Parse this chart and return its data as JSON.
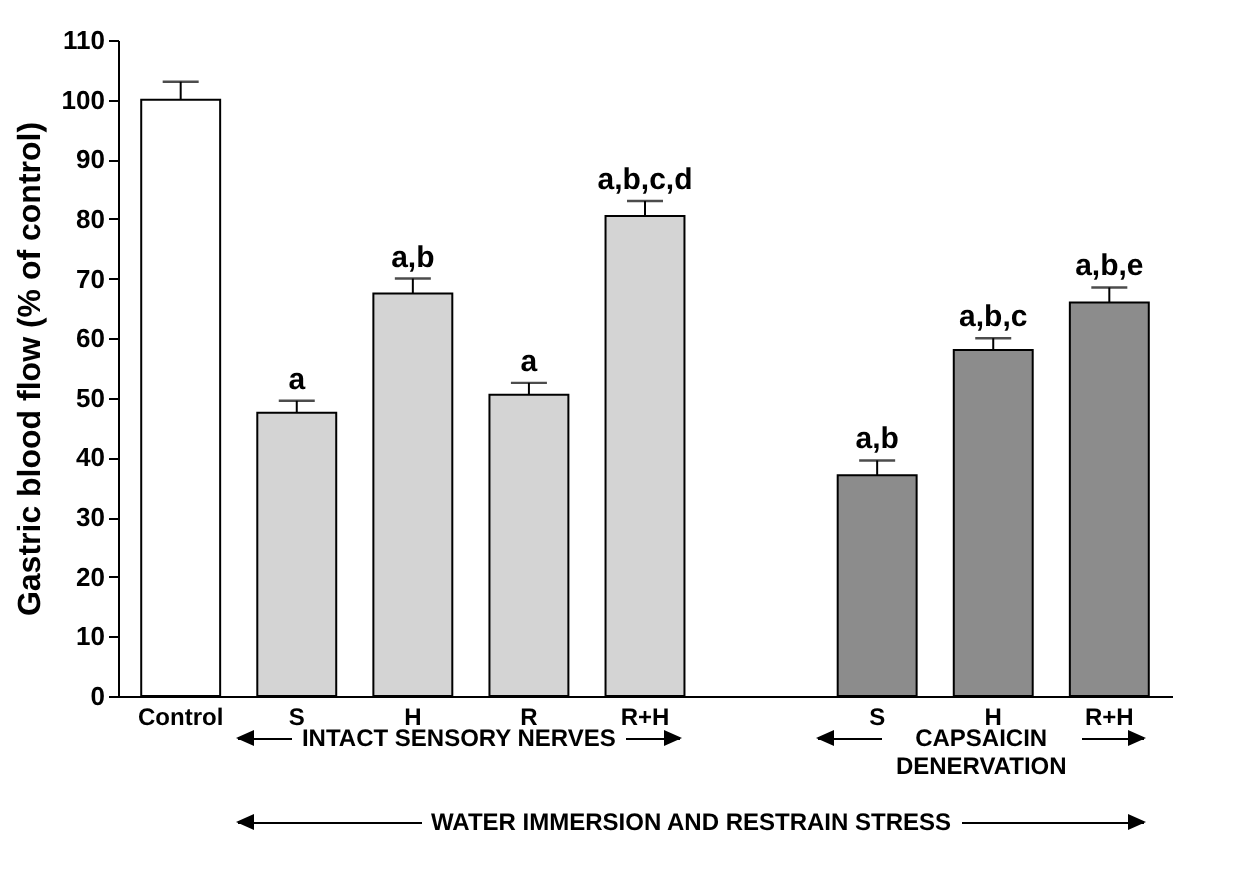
{
  "chart_data": {
    "type": "bar",
    "ylabel": "Gastric blood flow (% of control)",
    "categories": [
      "Control",
      "S",
      "H",
      "R",
      "R+H",
      null,
      "S",
      "H",
      "R+H"
    ],
    "values": [
      100,
      47.5,
      67.5,
      50.5,
      80.5,
      null,
      37,
      58,
      66
    ],
    "errors": [
      3,
      2,
      2.5,
      2,
      2.5,
      null,
      2.5,
      2,
      2.5
    ],
    "colors": [
      "#ffffff",
      "#d4d4d4",
      "#d4d4d4",
      "#d4d4d4",
      "#d4d4d4",
      null,
      "#8c8c8c",
      "#8c8c8c",
      "#8c8c8c"
    ],
    "value_labels": [
      null,
      "a",
      "a,b",
      "a",
      "a,b,c,d",
      null,
      "a,b",
      "a,b,c",
      "a,b,e"
    ],
    "ylim": [
      0,
      110
    ],
    "yticks": [
      0,
      10,
      20,
      30,
      40,
      50,
      60,
      70,
      80,
      90,
      100,
      110
    ],
    "grid": false,
    "annotations": [
      "INTACT SENSORY NERVES",
      "CAPSAICIN DENERVATION",
      "WATER IMMERSION AND RESTRAIN STRESS"
    ]
  }
}
